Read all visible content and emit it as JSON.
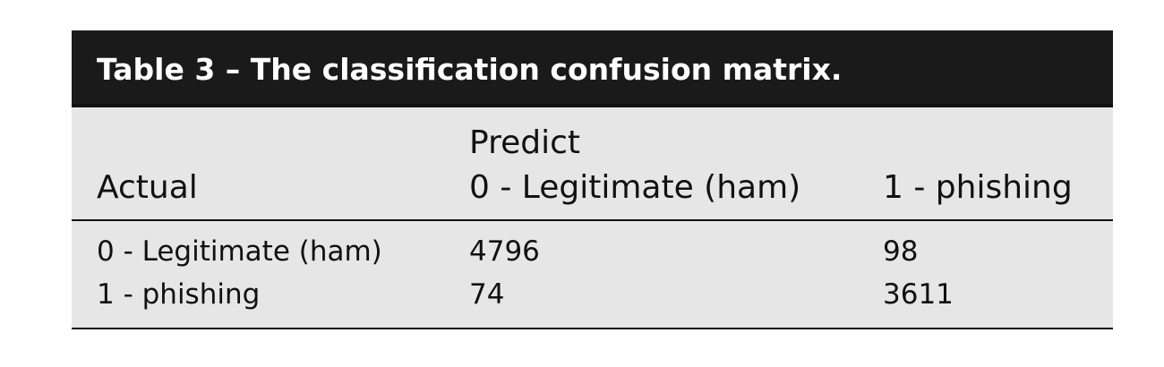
{
  "table": {
    "caption": "Table 3 – The classification confusion matrix.",
    "predict_label": "Predict",
    "header": {
      "actual": "Actual",
      "col_legit": "0 - Legitimate (ham)",
      "col_phish": "1 - phishing"
    },
    "rows": [
      {
        "label": "0 - Legitimate (ham)",
        "legit": "4796",
        "phish": "98"
      },
      {
        "label": "1 - phishing",
        "legit": "74",
        "phish": "3611"
      }
    ]
  }
}
